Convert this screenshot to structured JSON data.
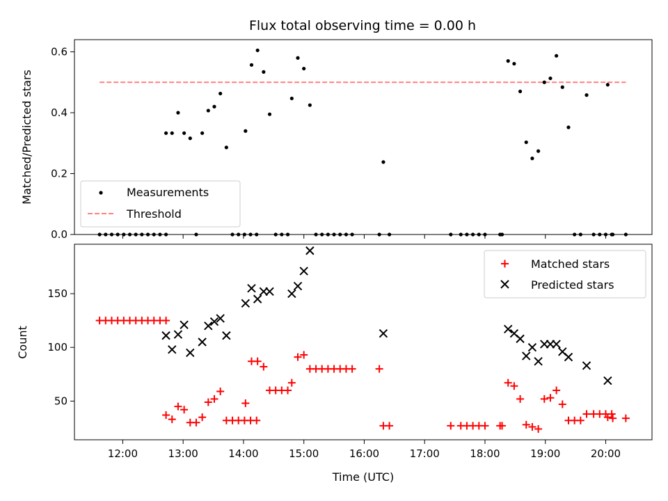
{
  "colors": {
    "measurements": "#000000",
    "threshold": "#ff7f7f",
    "matched": "#ff0000",
    "predicted": "#000000"
  },
  "chart_data": [
    {
      "type": "scatter",
      "title": "Flux total observing time = 0.00 h",
      "xlabel": "",
      "ylabel": "Matched/Predicted stars",
      "ylim": [
        0,
        0.64
      ],
      "yticks": [
        "0.0",
        "0.2",
        "0.4",
        "0.6"
      ],
      "legend_position": "lower-left",
      "legend": [
        "Measurements",
        "Threshold"
      ],
      "threshold": {
        "value": 0.5,
        "x_range": [
          "11:37",
          "20:20"
        ]
      },
      "series": [
        {
          "name": "Measurements",
          "marker": "dot",
          "points": [
            [
              "11:37",
              0
            ],
            [
              "11:43",
              0
            ],
            [
              "11:49",
              0
            ],
            [
              "11:55",
              0
            ],
            [
              "12:01",
              0
            ],
            [
              "12:07",
              0
            ],
            [
              "12:13",
              0
            ],
            [
              "12:19",
              0
            ],
            [
              "12:25",
              0
            ],
            [
              "12:31",
              0
            ],
            [
              "12:37",
              0
            ],
            [
              "12:43",
              0
            ],
            [
              "12:43",
              0.333
            ],
            [
              "12:49",
              0.333
            ],
            [
              "12:55",
              0.4
            ],
            [
              "13:01",
              0.333
            ],
            [
              "13:07",
              0.316
            ],
            [
              "13:13",
              0
            ],
            [
              "13:19",
              0.333
            ],
            [
              "13:25",
              0.407
            ],
            [
              "13:31",
              0.42
            ],
            [
              "13:37",
              0.463
            ],
            [
              "13:43",
              0.286
            ],
            [
              "13:49",
              0
            ],
            [
              "13:55",
              0
            ],
            [
              "14:01",
              0
            ],
            [
              "14:07",
              0
            ],
            [
              "14:13",
              0
            ],
            [
              "14:02",
              0.34
            ],
            [
              "14:08",
              0.557
            ],
            [
              "14:14",
              0.605
            ],
            [
              "14:20",
              0.534
            ],
            [
              "14:26",
              0.395
            ],
            [
              "14:32",
              0
            ],
            [
              "14:38",
              0
            ],
            [
              "14:44",
              0
            ],
            [
              "14:48",
              0.447
            ],
            [
              "14:54",
              0.58
            ],
            [
              "15:00",
              0.545
            ],
            [
              "15:06",
              0.425
            ],
            [
              "15:12",
              0
            ],
            [
              "15:18",
              0
            ],
            [
              "15:24",
              0
            ],
            [
              "15:30",
              0
            ],
            [
              "15:36",
              0
            ],
            [
              "15:42",
              0
            ],
            [
              "15:48",
              0
            ],
            [
              "16:15",
              0
            ],
            [
              "16:19",
              0.238
            ],
            [
              "16:25",
              0
            ],
            [
              "17:26",
              0
            ],
            [
              "17:36",
              0
            ],
            [
              "17:42",
              0
            ],
            [
              "17:48",
              0
            ],
            [
              "17:54",
              0
            ],
            [
              "18:00",
              0
            ],
            [
              "18:15",
              0
            ],
            [
              "18:17",
              0
            ],
            [
              "18:23",
              0.57
            ],
            [
              "18:29",
              0.561
            ],
            [
              "18:35",
              0.47
            ],
            [
              "18:41",
              0.303
            ],
            [
              "18:47",
              0.25
            ],
            [
              "18:53",
              0.274
            ],
            [
              "18:59",
              0.5
            ],
            [
              "19:05",
              0.513
            ],
            [
              "19:11",
              0.587
            ],
            [
              "19:17",
              0.484
            ],
            [
              "19:23",
              0.352
            ],
            [
              "19:29",
              0
            ],
            [
              "19:35",
              0
            ],
            [
              "19:41",
              0.458
            ],
            [
              "19:48",
              0
            ],
            [
              "19:54",
              0
            ],
            [
              "20:00",
              0
            ],
            [
              "20:06",
              0
            ],
            [
              "20:02",
              0.492
            ],
            [
              "20:07",
              0
            ],
            [
              "20:20",
              0
            ]
          ]
        }
      ]
    },
    {
      "type": "scatter",
      "title": "",
      "xlabel": "Time (UTC)",
      "ylabel": "Count",
      "ylim": [
        14,
        196
      ],
      "yticks": [
        "50",
        "100",
        "150"
      ],
      "xticks": [
        "12:00",
        "13:00",
        "14:00",
        "15:00",
        "16:00",
        "17:00",
        "18:00",
        "19:00",
        "20:00"
      ],
      "legend_position": "upper-right",
      "legend": [
        "Matched stars",
        "Predicted stars"
      ],
      "series": [
        {
          "name": "Matched stars",
          "marker": "plus",
          "points": [
            [
              "11:37",
              125
            ],
            [
              "11:43",
              125
            ],
            [
              "11:49",
              125
            ],
            [
              "11:55",
              125
            ],
            [
              "12:01",
              125
            ],
            [
              "12:07",
              125
            ],
            [
              "12:13",
              125
            ],
            [
              "12:19",
              125
            ],
            [
              "12:25",
              125
            ],
            [
              "12:31",
              125
            ],
            [
              "12:37",
              125
            ],
            [
              "12:43",
              125
            ],
            [
              "12:43",
              37
            ],
            [
              "12:49",
              33
            ],
            [
              "12:55",
              45
            ],
            [
              "13:01",
              42
            ],
            [
              "13:07",
              30
            ],
            [
              "13:13",
              30
            ],
            [
              "13:19",
              35
            ],
            [
              "13:25",
              49
            ],
            [
              "13:31",
              52
            ],
            [
              "13:37",
              59
            ],
            [
              "13:43",
              32
            ],
            [
              "13:49",
              32
            ],
            [
              "13:55",
              32
            ],
            [
              "14:01",
              32
            ],
            [
              "14:07",
              32
            ],
            [
              "14:13",
              32
            ],
            [
              "14:02",
              48
            ],
            [
              "14:08",
              87
            ],
            [
              "14:14",
              87
            ],
            [
              "14:20",
              82
            ],
            [
              "14:26",
              60
            ],
            [
              "14:32",
              60
            ],
            [
              "14:38",
              60
            ],
            [
              "14:44",
              60
            ],
            [
              "14:48",
              67
            ],
            [
              "14:54",
              91
            ],
            [
              "15:00",
              93
            ],
            [
              "15:06",
              80
            ],
            [
              "15:12",
              80
            ],
            [
              "15:18",
              80
            ],
            [
              "15:24",
              80
            ],
            [
              "15:30",
              80
            ],
            [
              "15:36",
              80
            ],
            [
              "15:42",
              80
            ],
            [
              "15:48",
              80
            ],
            [
              "16:15",
              80
            ],
            [
              "16:19",
              27
            ],
            [
              "16:25",
              27
            ],
            [
              "17:26",
              27
            ],
            [
              "17:36",
              27
            ],
            [
              "17:42",
              27
            ],
            [
              "17:48",
              27
            ],
            [
              "17:54",
              27
            ],
            [
              "18:00",
              27
            ],
            [
              "18:15",
              27
            ],
            [
              "18:17",
              27
            ],
            [
              "18:23",
              67
            ],
            [
              "18:29",
              64
            ],
            [
              "18:35",
              52
            ],
            [
              "18:41",
              28
            ],
            [
              "18:47",
              26
            ],
            [
              "18:53",
              24
            ],
            [
              "18:59",
              52
            ],
            [
              "19:05",
              53
            ],
            [
              "19:11",
              60
            ],
            [
              "19:17",
              47
            ],
            [
              "19:23",
              32
            ],
            [
              "19:29",
              32
            ],
            [
              "19:35",
              32
            ],
            [
              "19:41",
              38
            ],
            [
              "19:48",
              38
            ],
            [
              "19:54",
              38
            ],
            [
              "20:00",
              38
            ],
            [
              "20:06",
              38
            ],
            [
              "20:02",
              35
            ],
            [
              "20:07",
              34
            ],
            [
              "20:20",
              34
            ]
          ]
        },
        {
          "name": "Predicted stars",
          "marker": "x",
          "points": [
            [
              "12:43",
              111
            ],
            [
              "12:49",
              98
            ],
            [
              "12:55",
              112
            ],
            [
              "13:01",
              121
            ],
            [
              "13:07",
              95
            ],
            [
              "13:19",
              105
            ],
            [
              "13:25",
              120
            ],
            [
              "13:31",
              124
            ],
            [
              "13:37",
              127
            ],
            [
              "13:43",
              111
            ],
            [
              "14:02",
              141
            ],
            [
              "14:08",
              155
            ],
            [
              "14:14",
              145
            ],
            [
              "14:20",
              152
            ],
            [
              "14:26",
              152
            ],
            [
              "14:48",
              150
            ],
            [
              "14:54",
              157
            ],
            [
              "15:00",
              171
            ],
            [
              "15:06",
              190
            ],
            [
              "16:19",
              113
            ],
            [
              "18:23",
              117
            ],
            [
              "18:29",
              113
            ],
            [
              "18:35",
              108
            ],
            [
              "18:41",
              92
            ],
            [
              "18:47",
              100
            ],
            [
              "18:53",
              87
            ],
            [
              "18:59",
              103
            ],
            [
              "19:05",
              103
            ],
            [
              "19:11",
              103
            ],
            [
              "19:17",
              96
            ],
            [
              "19:23",
              91
            ],
            [
              "19:41",
              83
            ],
            [
              "20:02",
              69
            ]
          ]
        }
      ]
    }
  ]
}
